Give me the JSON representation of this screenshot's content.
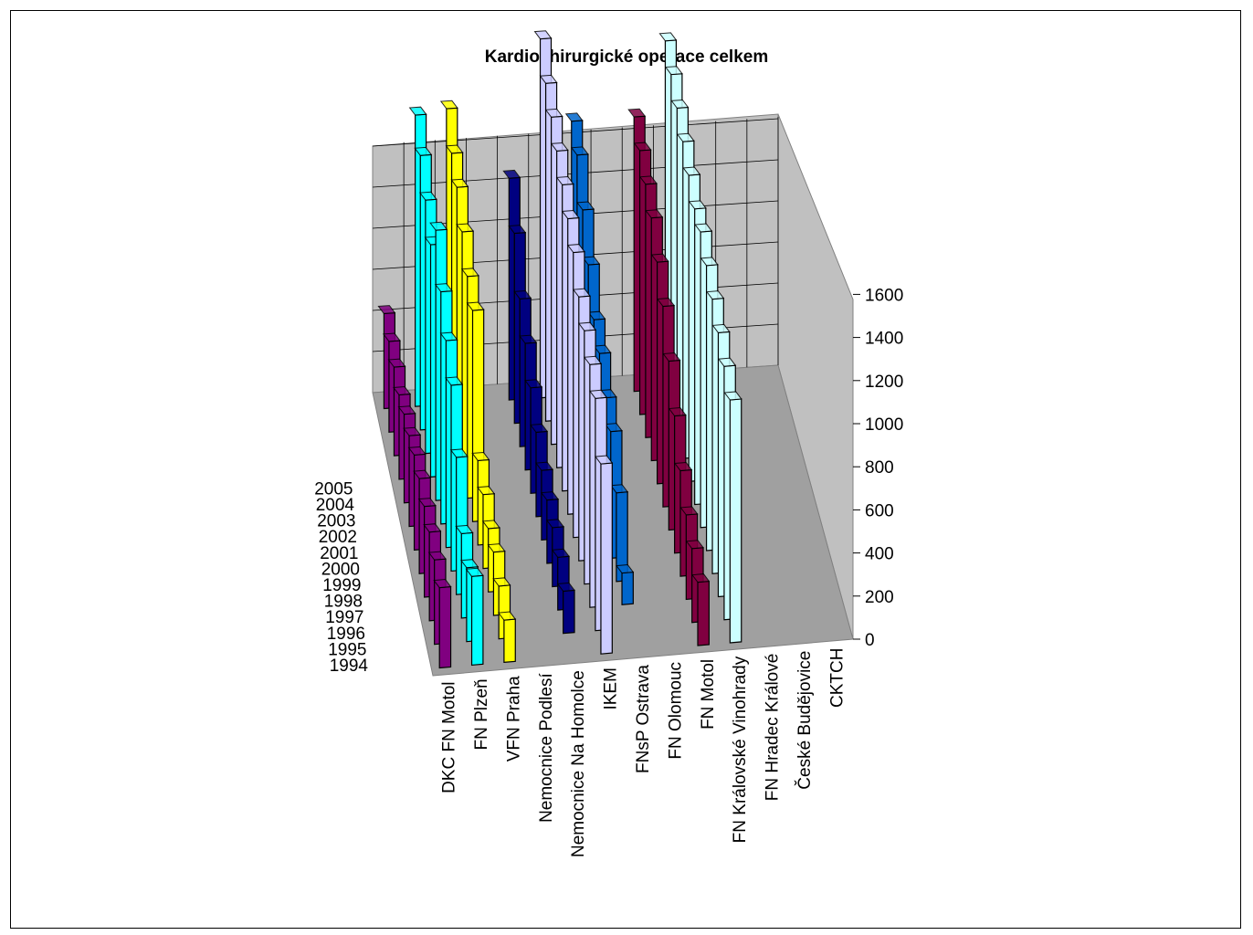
{
  "chart_data": {
    "type": "bar",
    "title": "Kardiochirurgické operace celkem",
    "categories": [
      "DKC FN Motol",
      "FN Plzeň",
      "VFN Praha",
      "Nemocnice Podlesí",
      "Nemocnice Na Homolce",
      "IKEM",
      "FNsP Ostrava",
      "FN Olomouc",
      "FN Motol",
      "FN Královské Vinohrady",
      "FN Hradec Králové",
      "České Budějovice",
      "CKTCH"
    ],
    "series": [
      {
        "name": "1994",
        "values": [
          380,
          420,
          200,
          0,
          0,
          900,
          0,
          0,
          300,
          1150,
          0,
          0,
          0
        ]
      },
      {
        "name": "1995",
        "values": [
          400,
          350,
          250,
          0,
          200,
          1100,
          0,
          0,
          350,
          1200,
          0,
          0,
          0
        ]
      },
      {
        "name": "1996",
        "values": [
          420,
          400,
          300,
          0,
          250,
          1150,
          150,
          0,
          400,
          1250,
          0,
          0,
          0
        ]
      },
      {
        "name": "1997",
        "values": [
          430,
          650,
          300,
          0,
          280,
          1200,
          420,
          0,
          500,
          1300,
          0,
          0,
          0
        ]
      },
      {
        "name": "1998",
        "values": [
          450,
          880,
          350,
          0,
          300,
          1250,
          600,
          0,
          650,
          1350,
          0,
          0,
          0
        ]
      },
      {
        "name": "1999",
        "values": [
          450,
          980,
          400,
          0,
          330,
          1350,
          650,
          0,
          800,
          1400,
          0,
          0,
          0
        ]
      },
      {
        "name": "2000",
        "values": [
          430,
          1100,
          1000,
          0,
          400,
          1400,
          750,
          0,
          950,
          1400,
          0,
          0,
          0
        ]
      },
      {
        "name": "2001",
        "values": [
          420,
          1280,
          1050,
          0,
          500,
          1450,
          800,
          0,
          1050,
          1450,
          0,
          0,
          0
        ]
      },
      {
        "name": "2002",
        "values": [
          400,
          1100,
          1150,
          0,
          600,
          1500,
          950,
          0,
          1150,
          1500,
          0,
          0,
          0
        ]
      },
      {
        "name": "2003",
        "values": [
          420,
          1200,
          1250,
          0,
          700,
          1550,
          1100,
          0,
          1200,
          1550,
          0,
          0,
          0
        ]
      },
      {
        "name": "2004",
        "values": [
          430,
          1300,
          1300,
          0,
          900,
          1600,
          1250,
          0,
          1250,
          1600,
          0,
          0,
          0
        ]
      },
      {
        "name": "2005",
        "values": [
          450,
          1380,
          1400,
          0,
          1050,
          1700,
          1300,
          0,
          1300,
          1650,
          0,
          0,
          0
        ]
      }
    ],
    "yticks": [
      "0",
      "200",
      "400",
      "600",
      "800",
      "1000",
      "1200",
      "1400",
      "1600"
    ],
    "ylim": [
      0,
      1600
    ],
    "grid": true,
    "legend": "none",
    "colors": [
      "#800080",
      "#00ffff",
      "#ffff00",
      "#ff00ff",
      "#000080",
      "#ccccff",
      "#0066cc",
      "#ff8080",
      "#800040",
      "#ccffff",
      "#ffffcc",
      "#993366",
      "#9999ff"
    ]
  }
}
